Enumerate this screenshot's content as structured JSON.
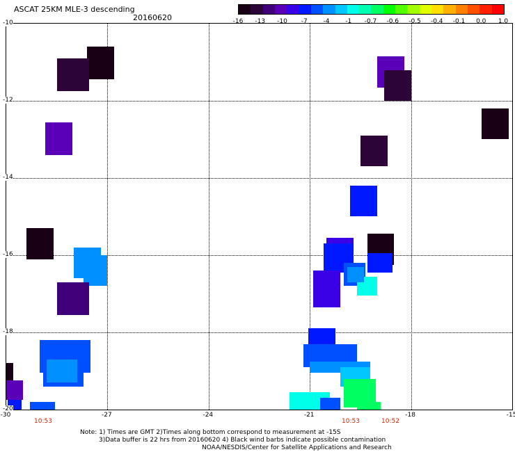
{
  "header": {
    "title": "ASCAT 25KM MLE-3 descending",
    "date": "20160620"
  },
  "colorbar": {
    "labels": [
      "-16",
      "-13",
      "-10",
      "-7",
      "-4",
      "-1",
      "-0.7",
      "-0.6",
      "-0.5",
      "-0.4",
      "-0.1",
      "0.0",
      "1.0"
    ],
    "colors": [
      "#1a0015",
      "#2c0438",
      "#40007a",
      "#5a00b8",
      "#3a00e6",
      "#0018ff",
      "#0050ff",
      "#0090ff",
      "#00c8ff",
      "#00ffe8",
      "#00ffb0",
      "#00ff60",
      "#00ff00",
      "#50ff00",
      "#a0ff00",
      "#e0ff00",
      "#ffe000",
      "#ffb000",
      "#ff8000",
      "#ff5000",
      "#ff2000",
      "#ff0000"
    ]
  },
  "axes": {
    "x_ticks": [
      "-30",
      "-27",
      "-24",
      "-21",
      "-18",
      "-15"
    ],
    "y_ticks": [
      "-10",
      "-12",
      "-14",
      "-16",
      "-18",
      "-20"
    ],
    "xlim": [
      -30,
      -15
    ],
    "ylim": [
      -20,
      -10
    ]
  },
  "times": [
    "10:53",
    "10:53",
    "10:52"
  ],
  "notes": {
    "line1": "Note: 1) Times are GMT 2)Times along bottom correspond to measurement at -15S",
    "line2": "3)Data buffer is 22 hrs from 20160620 4) Black wind barbs indicate possible contamination",
    "line3": "NOAA/NESDIS/Center for Satellite Applications and Research"
  },
  "palette": {
    "c1": "#1a0015",
    "c2": "#2c0438",
    "c3": "#40007a",
    "c4": "#5a00b8",
    "c5": "#3a00e6",
    "c6": "#0018ff",
    "c7": "#0050ff",
    "c8": "#0090ff",
    "c9": "#00c8ff",
    "c10": "#00ffe8",
    "c11": "#00ff60"
  },
  "cells": [
    {
      "lon": -27.6,
      "lat": -10.6,
      "w": 0.8,
      "h": 0.85,
      "c": "c1"
    },
    {
      "lon": -28.5,
      "lat": -10.9,
      "w": 0.95,
      "h": 0.85,
      "c": "c2"
    },
    {
      "lon": -28.85,
      "lat": -12.55,
      "w": 0.8,
      "h": 0.85,
      "c": "c4"
    },
    {
      "lon": -29.4,
      "lat": -15.3,
      "w": 0.8,
      "h": 0.8,
      "c": "c1"
    },
    {
      "lon": -28.0,
      "lat": -15.8,
      "w": 0.8,
      "h": 0.8,
      "c": "c8"
    },
    {
      "lon": -27.7,
      "lat": -16.0,
      "w": 0.7,
      "h": 0.8,
      "c": "c8"
    },
    {
      "lon": -28.5,
      "lat": -16.7,
      "w": 0.95,
      "h": 0.85,
      "c": "c3"
    },
    {
      "lon": -29.0,
      "lat": -18.2,
      "w": 1.5,
      "h": 0.85,
      "c": "c7"
    },
    {
      "lon": -28.9,
      "lat": -18.5,
      "w": 1.2,
      "h": 0.9,
      "c": "c7"
    },
    {
      "lon": -28.8,
      "lat": -18.7,
      "w": 0.9,
      "h": 0.6,
      "c": "c8"
    },
    {
      "lon": -30.0,
      "lat": -18.8,
      "w": 0.2,
      "h": 0.45,
      "c": "c1"
    },
    {
      "lon": -30.0,
      "lat": -19.25,
      "w": 0.5,
      "h": 0.5,
      "c": "c4"
    },
    {
      "lon": -29.95,
      "lat": -19.75,
      "w": 0.4,
      "h": 0.25,
      "c": "c6"
    },
    {
      "lon": -29.3,
      "lat": -19.8,
      "w": 0.75,
      "h": 0.2,
      "c": "c7"
    },
    {
      "lon": -19.0,
      "lat": -10.85,
      "w": 0.8,
      "h": 0.8,
      "c": "c4"
    },
    {
      "lon": -18.8,
      "lat": -11.2,
      "w": 0.8,
      "h": 0.8,
      "c": "c2"
    },
    {
      "lon": -15.9,
      "lat": -12.2,
      "w": 0.8,
      "h": 0.8,
      "c": "c1"
    },
    {
      "lon": -19.5,
      "lat": -12.9,
      "w": 0.8,
      "h": 0.8,
      "c": "c2"
    },
    {
      "lon": -19.8,
      "lat": -14.2,
      "w": 0.8,
      "h": 0.8,
      "c": "c6"
    },
    {
      "lon": -20.5,
      "lat": -15.55,
      "w": 0.8,
      "h": 0.75,
      "c": "c5"
    },
    {
      "lon": -20.6,
      "lat": -15.7,
      "w": 0.9,
      "h": 0.75,
      "c": "c6"
    },
    {
      "lon": -19.3,
      "lat": -15.45,
      "w": 0.8,
      "h": 0.8,
      "c": "c1"
    },
    {
      "lon": -19.3,
      "lat": -15.95,
      "w": 0.75,
      "h": 0.5,
      "c": "c6"
    },
    {
      "lon": -20.9,
      "lat": -16.4,
      "w": 0.8,
      "h": 0.95,
      "c": "c5"
    },
    {
      "lon": -20.0,
      "lat": -16.2,
      "w": 0.65,
      "h": 0.6,
      "c": "c7"
    },
    {
      "lon": -19.6,
      "lat": -16.55,
      "w": 0.6,
      "h": 0.5,
      "c": "c10"
    },
    {
      "lon": -19.9,
      "lat": -16.3,
      "w": 0.5,
      "h": 0.4,
      "c": "c8"
    },
    {
      "lon": -21.05,
      "lat": -17.9,
      "w": 0.8,
      "h": 0.55,
      "c": "c6"
    },
    {
      "lon": -21.2,
      "lat": -18.3,
      "w": 1.6,
      "h": 0.6,
      "c": "c7"
    },
    {
      "lon": -21.0,
      "lat": -18.75,
      "w": 1.8,
      "h": 0.3,
      "c": "c8"
    },
    {
      "lon": -20.1,
      "lat": -18.9,
      "w": 0.9,
      "h": 0.5,
      "c": "c9"
    },
    {
      "lon": -20.0,
      "lat": -19.2,
      "w": 0.95,
      "h": 0.45,
      "c": "c11"
    },
    {
      "lon": -20.0,
      "lat": -19.6,
      "w": 0.95,
      "h": 0.35,
      "c": "c11"
    },
    {
      "lon": -21.6,
      "lat": -19.55,
      "w": 1.2,
      "h": 0.45,
      "c": "c10"
    },
    {
      "lon": -20.7,
      "lat": -19.7,
      "w": 0.6,
      "h": 0.3,
      "c": "c7"
    },
    {
      "lon": -19.6,
      "lat": -19.8,
      "w": 0.7,
      "h": 0.2,
      "c": "c11"
    }
  ]
}
